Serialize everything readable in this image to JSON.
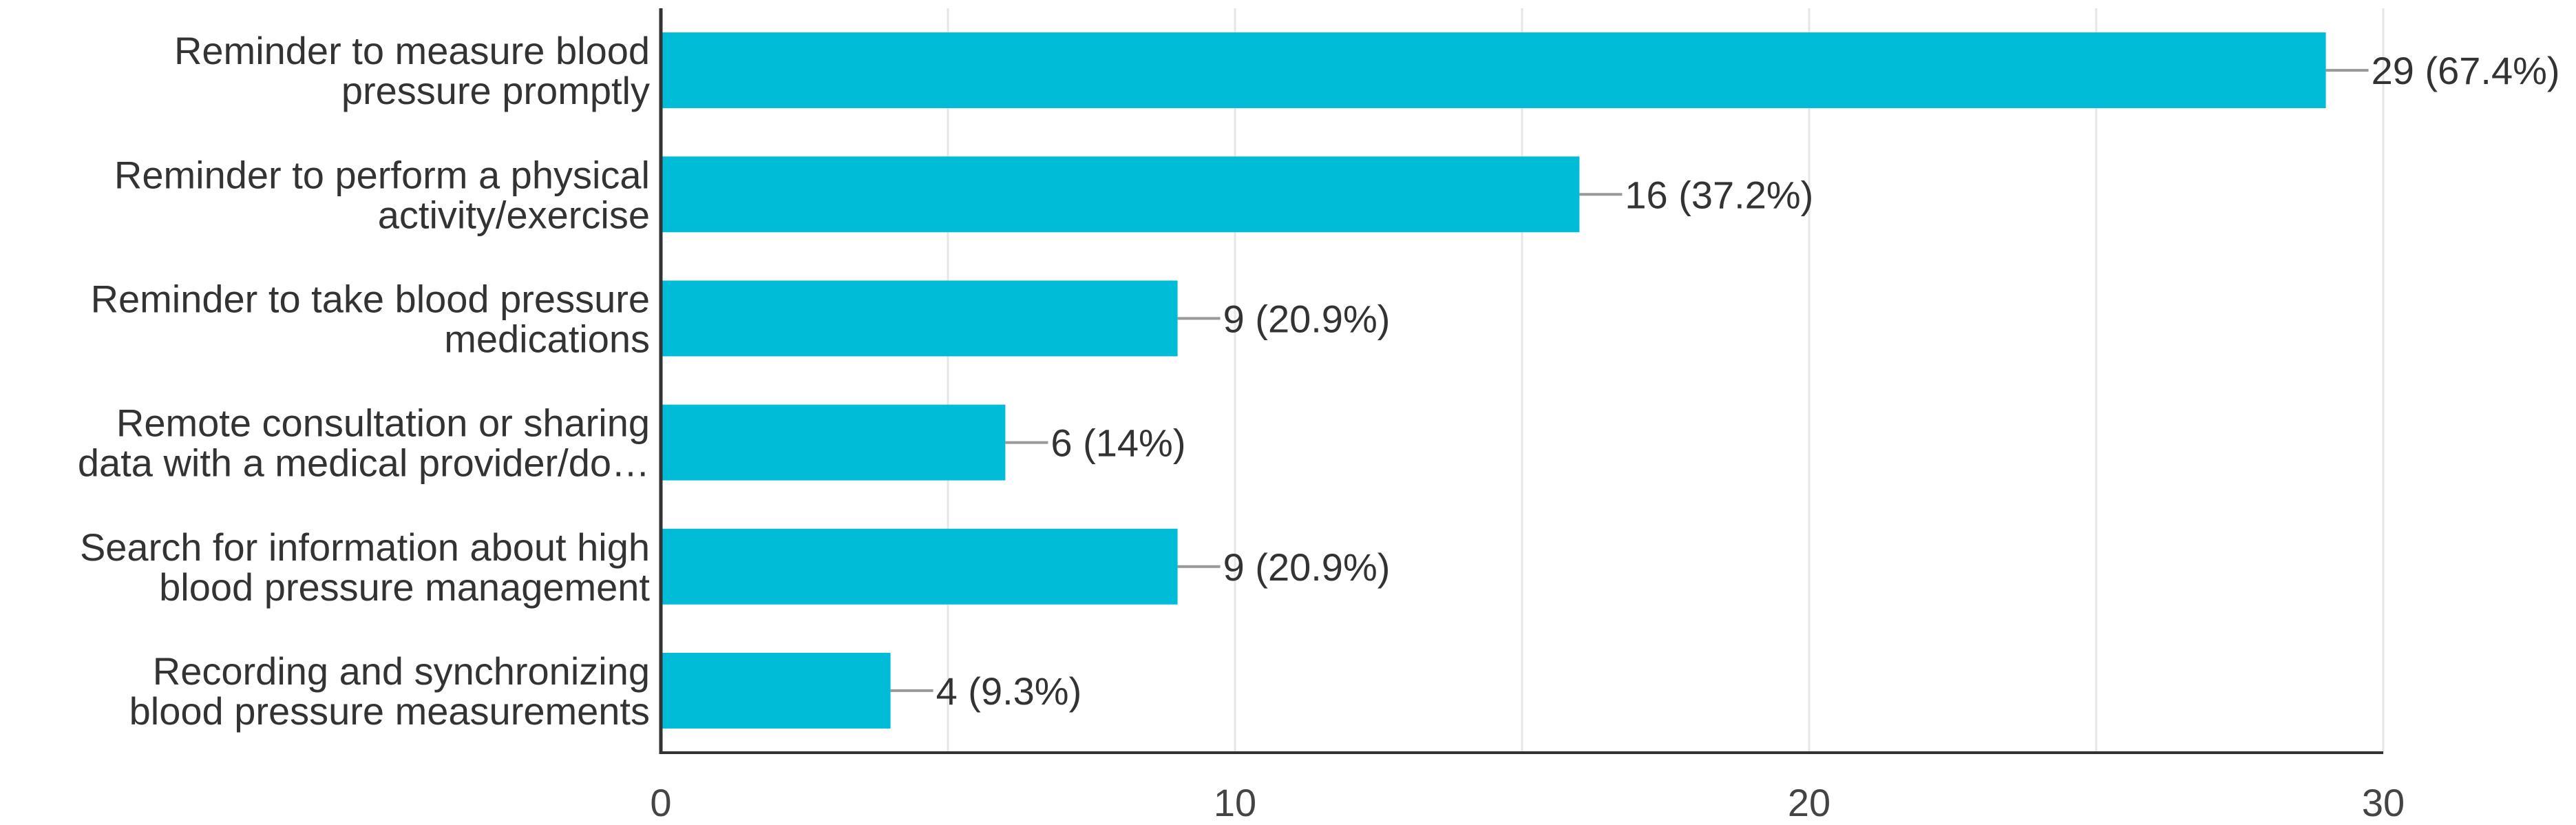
{
  "chart_data": {
    "type": "bar",
    "orientation": "horizontal",
    "categories": [
      [
        "Reminder to measure blood",
        "pressure promptly"
      ],
      [
        "Reminder to perform a physical",
        "activity/exercise"
      ],
      [
        "Reminder to take blood pressure",
        "medications"
      ],
      [
        "Remote consultation or sharing",
        "data with a medical provider/do…"
      ],
      [
        "Search for information about high",
        "blood pressure management"
      ],
      [
        "Recording and synchronizing",
        "blood pressure measurements"
      ]
    ],
    "values": [
      29,
      16,
      9,
      6,
      9,
      4
    ],
    "value_labels": [
      "29 (67.4%)",
      "16 (37.2%)",
      "9 (20.9%)",
      "6 (14%)",
      "9 (20.9%)",
      "4 (9.3%)"
    ],
    "x_ticks": [
      0,
      10,
      20,
      30
    ],
    "x_tick_labels": [
      "0",
      "10",
      "20",
      "30"
    ],
    "xlim": [
      0,
      30
    ],
    "grid": true,
    "legend": "none",
    "colors": {
      "bar": "#00BCD6",
      "grid": "#E6E6E6",
      "axis": "#333333",
      "leader": "#999999",
      "text": "#333333"
    }
  }
}
